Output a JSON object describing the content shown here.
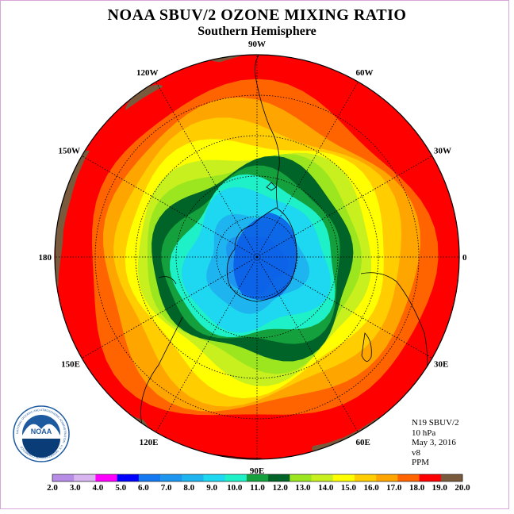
{
  "title": "NOAA SBUV/2 OZONE MIXING RATIO",
  "subtitle": "Southern Hemisphere",
  "longitude_labels": [
    {
      "label": "90W",
      "lon_deg": -90
    },
    {
      "label": "60W",
      "lon_deg": -60
    },
    {
      "label": "30W",
      "lon_deg": -30
    },
    {
      "label": "0",
      "lon_deg": 0
    },
    {
      "label": "30E",
      "lon_deg": 30
    },
    {
      "label": "60E",
      "lon_deg": 60
    },
    {
      "label": "90E",
      "lon_deg": 90
    },
    {
      "label": "120E",
      "lon_deg": 120
    },
    {
      "label": "150E",
      "lon_deg": 150
    },
    {
      "label": "180",
      "lon_deg": 180
    },
    {
      "label": "150W",
      "lon_deg": -150
    },
    {
      "label": "120W",
      "lon_deg": -120
    }
  ],
  "info": {
    "satellite": "N19 SBUV/2",
    "level": "10 hPa",
    "date": "May 3, 2016",
    "version": "v8",
    "units": "PPM"
  },
  "logo": {
    "text": "NOAA",
    "ring_text": "NATIONAL OCEANIC AND ATMOSPHERIC ADMINISTRATION · U.S. DEPARTMENT OF COMMERCE"
  },
  "colorbar": {
    "ticks": [
      "2.0",
      "3.0",
      "4.0",
      "5.0",
      "6.0",
      "7.0",
      "8.0",
      "9.0",
      "10.0",
      "11.0",
      "12.0",
      "13.0",
      "14.0",
      "15.0",
      "16.0",
      "17.0",
      "18.0",
      "19.0",
      "20.0"
    ],
    "colors": [
      "#b78ce6",
      "#d8b4f0",
      "#ff00ff",
      "#0000ff",
      "#1478f0",
      "#1e96f0",
      "#1eb4f0",
      "#1ed7f0",
      "#1ef0c8",
      "#14a03c",
      "#006428",
      "#9be61e",
      "#c8f01e",
      "#ffff00",
      "#ffcd00",
      "#ffa500",
      "#ff6400",
      "#ff0000",
      "#7a5a3c"
    ]
  },
  "ozone_contours": [
    {
      "level": 19.0,
      "color": "#ff0000",
      "r": 255
    },
    {
      "level": 18.0,
      "color": "#ff6400",
      "r": 218
    },
    {
      "level": 17.0,
      "color": "#ffa500",
      "r": 198
    },
    {
      "level": 16.0,
      "color": "#ffcd00",
      "r": 180
    },
    {
      "level": 15.0,
      "color": "#ffff00",
      "r": 163
    },
    {
      "level": 14.0,
      "color": "#c8f01e",
      "r": 147
    },
    {
      "level": 13.0,
      "color": "#9be61e",
      "r": 135
    },
    {
      "level": 12.0,
      "color": "#006428",
      "r": 126
    },
    {
      "level": 11.0,
      "color": "#14a03c",
      "r": 112
    },
    {
      "level": 10.0,
      "color": "#1ef0c8",
      "r": 102
    },
    {
      "level": 9.0,
      "color": "#1ed7f0",
      "r": 90
    },
    {
      "level": 8.0,
      "color": "#1eb4f0",
      "r": 62
    },
    {
      "level": 7.0,
      "color": "#1e96f0",
      "r": 38
    }
  ]
}
